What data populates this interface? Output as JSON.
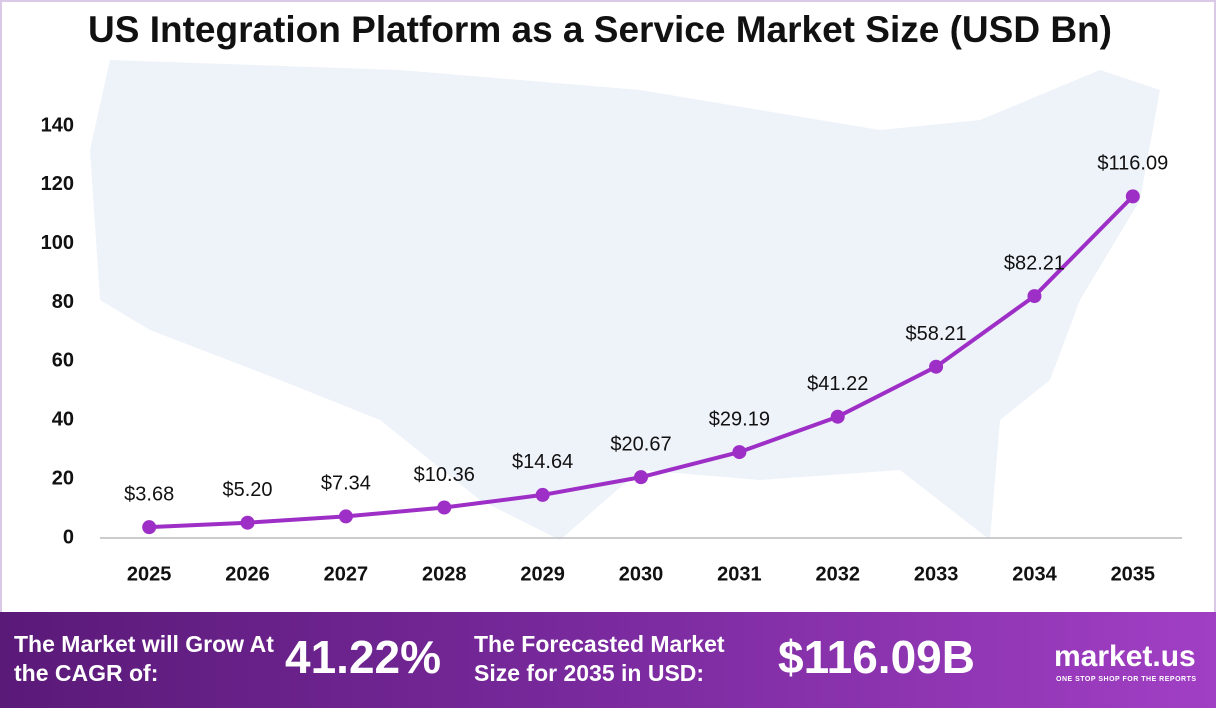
{
  "chart_data": {
    "type": "line",
    "title": "US Integration Platform as a Service Market Size (USD Bn)",
    "categories": [
      "2025",
      "2026",
      "2027",
      "2028",
      "2029",
      "2030",
      "2031",
      "2032",
      "2033",
      "2034",
      "2035"
    ],
    "values": [
      3.68,
      5.2,
      7.34,
      10.36,
      14.64,
      20.67,
      29.19,
      41.22,
      58.21,
      82.21,
      116.09
    ],
    "value_labels": [
      "$3.68",
      "$5.20",
      "$7.34",
      "$10.36",
      "$14.64",
      "$20.67",
      "$29.19",
      "$41.22",
      "$58.21",
      "$82.21",
      "$116.09"
    ],
    "color": "#9d2fc6",
    "ylim": [
      0,
      140
    ],
    "yticks": [
      0,
      20,
      40,
      60,
      80,
      100,
      120,
      140
    ],
    "grid": false
  },
  "footer": {
    "cagr_text": "The Market will Grow At the CAGR of:",
    "cagr_value": "41.22%",
    "forecast_text": "The Forecasted Market Size for 2035 in USD:",
    "forecast_value": "$116.09B",
    "brand": "market.us",
    "tagline": "ONE STOP SHOP FOR THE REPORTS"
  }
}
